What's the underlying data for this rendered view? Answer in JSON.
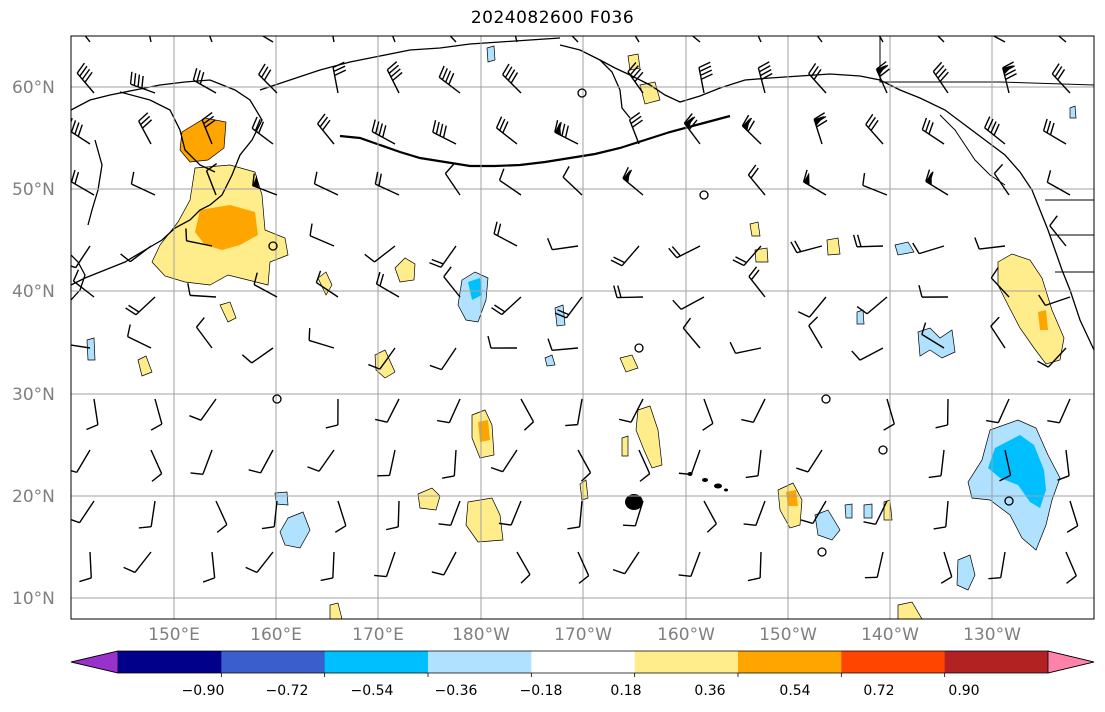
{
  "title": "2024082600 F036",
  "lat_labels": [
    "60°N",
    "50°N",
    "40°N",
    "30°N",
    "20°N",
    "10°N"
  ],
  "lon_labels": [
    "150°E",
    "160°E",
    "170°E",
    "180°W",
    "170°W",
    "160°W",
    "150°W",
    "140°W",
    "130°W"
  ],
  "colorbar": {
    "ticks": [
      "−0.90",
      "−0.72",
      "−0.54",
      "−0.36",
      "−0.18",
      "0.18",
      "0.36",
      "0.54",
      "0.72",
      "0.90"
    ],
    "colors": [
      "#9932cc",
      "#00008b",
      "#3a5fcd",
      "#00bfff",
      "#b0e2ff",
      "#ffffff",
      "#ffec8b",
      "#ffa500",
      "#ff4500",
      "#b22222",
      "#ff82ab"
    ]
  }
}
